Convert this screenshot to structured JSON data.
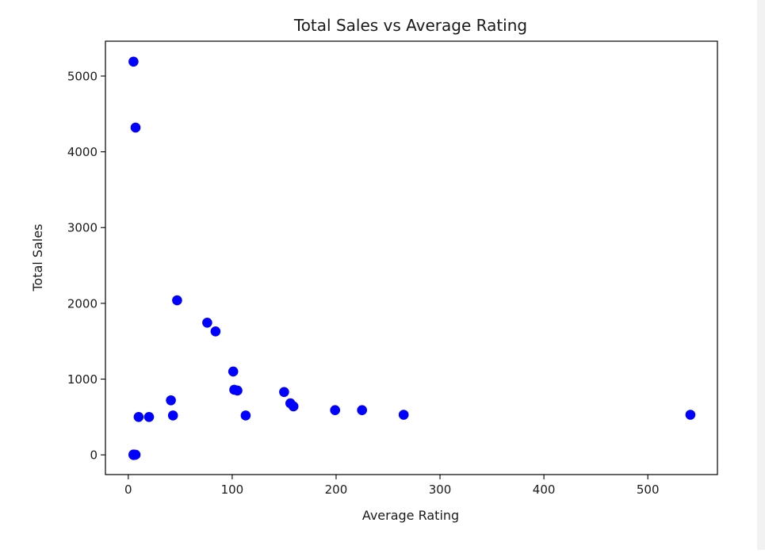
{
  "chart_data": {
    "type": "scatter",
    "title": "Total Sales vs Average Rating",
    "xlabel": "Average Rating",
    "ylabel": "Total Sales",
    "xlim": [
      -22,
      567
    ],
    "ylim": [
      -260,
      5460
    ],
    "xticks": [
      0,
      100,
      200,
      300,
      400,
      500
    ],
    "yticks": [
      0,
      1000,
      2000,
      3000,
      4000,
      5000
    ],
    "grid": false,
    "marker_color": "#0000ff",
    "points": [
      {
        "x": 5,
        "y": 5190
      },
      {
        "x": 7,
        "y": 4320
      },
      {
        "x": 47,
        "y": 2040
      },
      {
        "x": 76,
        "y": 1745
      },
      {
        "x": 84,
        "y": 1630
      },
      {
        "x": 101,
        "y": 1100
      },
      {
        "x": 102,
        "y": 860
      },
      {
        "x": 105,
        "y": 850
      },
      {
        "x": 150,
        "y": 830
      },
      {
        "x": 41,
        "y": 720
      },
      {
        "x": 156,
        "y": 680
      },
      {
        "x": 159,
        "y": 640
      },
      {
        "x": 199,
        "y": 590
      },
      {
        "x": 225,
        "y": 590
      },
      {
        "x": 265,
        "y": 530
      },
      {
        "x": 541,
        "y": 530
      },
      {
        "x": 113,
        "y": 520
      },
      {
        "x": 43,
        "y": 520
      },
      {
        "x": 10,
        "y": 500
      },
      {
        "x": 20,
        "y": 500
      },
      {
        "x": 5,
        "y": 5
      },
      {
        "x": 6,
        "y": 0
      },
      {
        "x": 7,
        "y": 2
      },
      {
        "x": 5,
        "y": -2
      }
    ]
  }
}
